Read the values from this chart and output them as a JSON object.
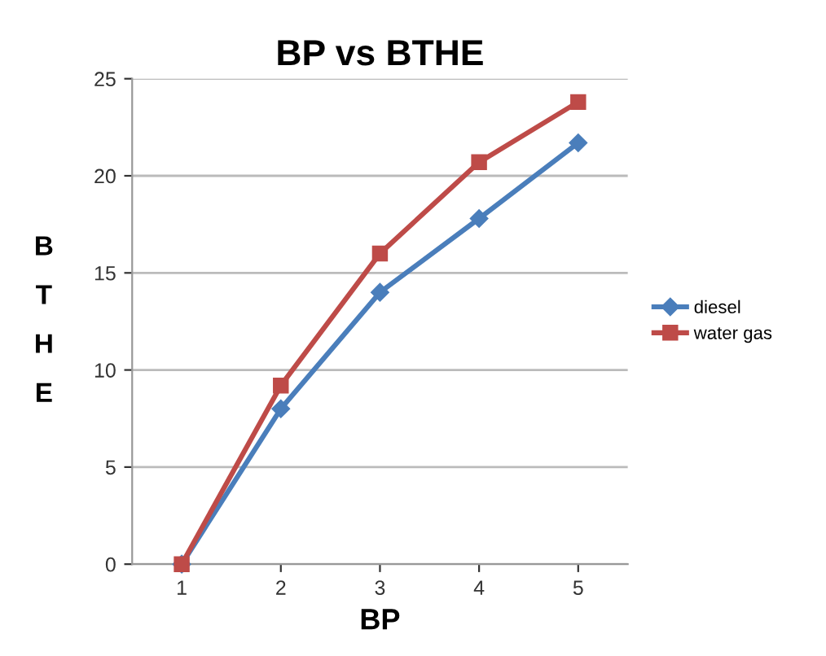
{
  "chart_data": {
    "type": "line",
    "title": "BP vs BTHE",
    "xlabel": "BP",
    "ylabel": "B\nT\nH\nE",
    "categories": [
      "1",
      "2",
      "3",
      "4",
      "5"
    ],
    "series": [
      {
        "name": "diesel",
        "color": "#4a7ebb",
        "marker": "diamond",
        "values": [
          0,
          8,
          14,
          17.8,
          21.7
        ]
      },
      {
        "name": "water gas",
        "color": "#be4b48",
        "marker": "square",
        "values": [
          0,
          9.2,
          16,
          20.7,
          23.8
        ]
      }
    ],
    "ylim": [
      0,
      25
    ],
    "yticks": [
      0,
      5,
      10,
      15,
      20,
      25
    ],
    "grid": "y",
    "legend": "right",
    "line_style": "solid"
  }
}
